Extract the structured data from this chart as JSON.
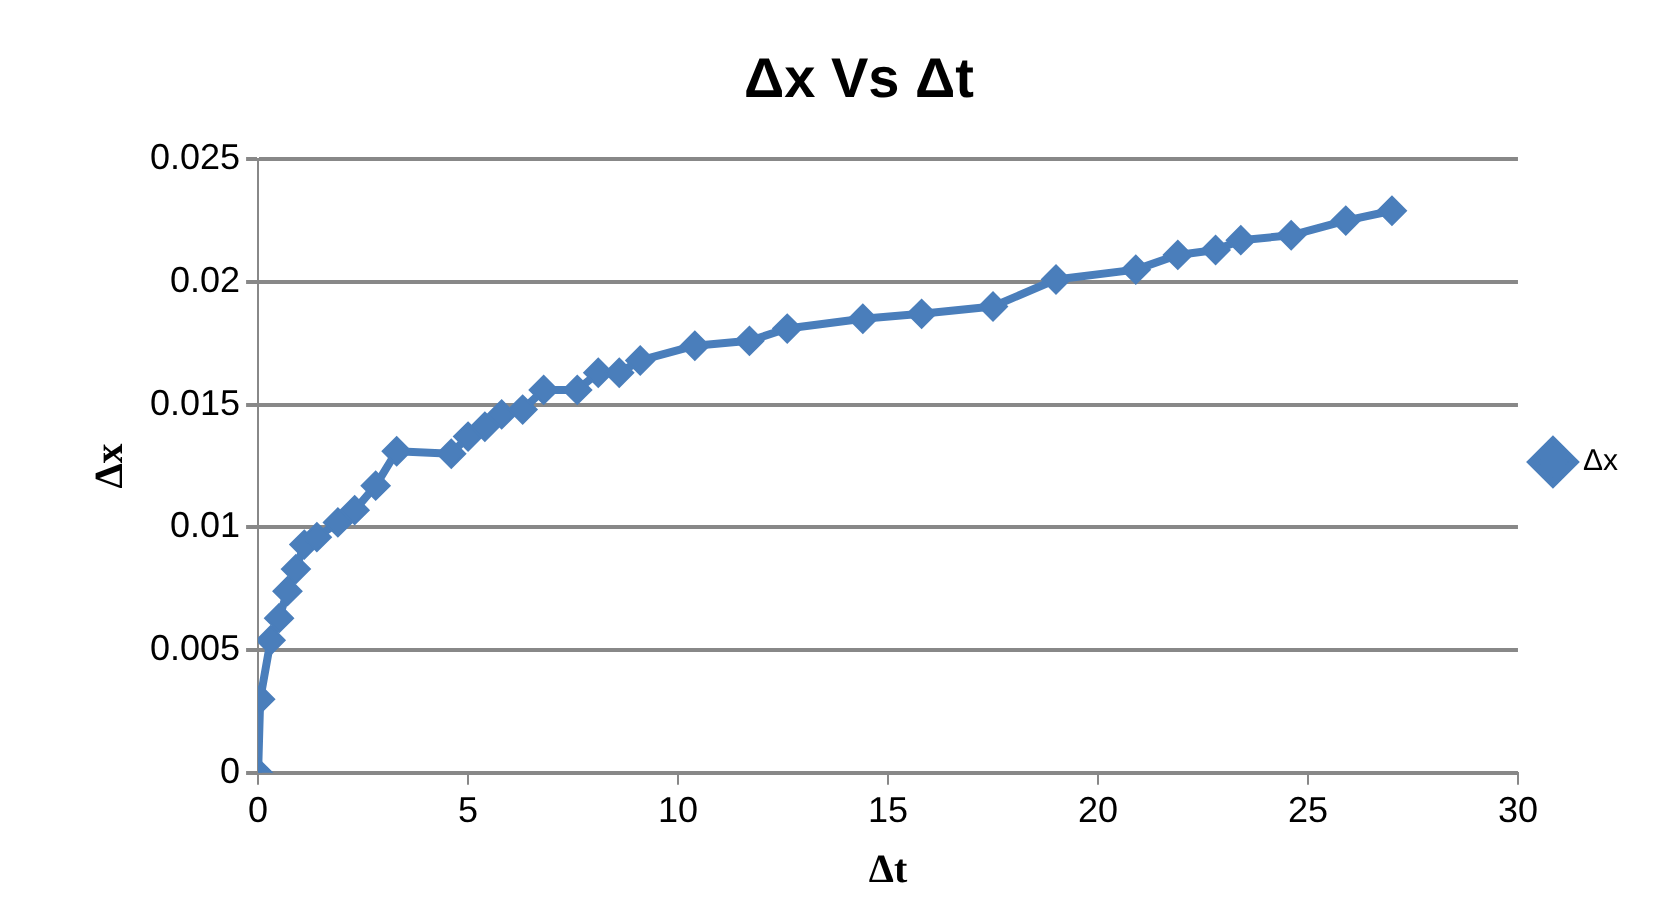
{
  "chart_data": {
    "type": "line",
    "title": "Δx Vs Δt",
    "xlabel": "Δt",
    "ylabel": "Δx",
    "x": [
      0,
      0.05,
      0.3,
      0.5,
      0.7,
      0.9,
      1.1,
      1.4,
      1.9,
      2.3,
      2.8,
      3.3,
      4.6,
      5.0,
      5.4,
      5.8,
      6.3,
      6.8,
      7.6,
      8.1,
      8.6,
      9.1,
      10.4,
      11.7,
      12.6,
      14.4,
      15.8,
      17.5,
      19.0,
      20.9,
      21.9,
      22.8,
      23.4,
      24.6,
      25.9,
      27.0
    ],
    "series": [
      {
        "name": "Δx",
        "color": "#4a7ebb",
        "values": [
          0,
          0.003,
          0.0054,
          0.0063,
          0.0074,
          0.0083,
          0.0093,
          0.0096,
          0.0102,
          0.0107,
          0.0117,
          0.0131,
          0.013,
          0.0137,
          0.0141,
          0.0146,
          0.0148,
          0.0156,
          0.0156,
          0.0163,
          0.0163,
          0.0168,
          0.0174,
          0.0176,
          0.0181,
          0.0185,
          0.0187,
          0.019,
          0.0201,
          0.0205,
          0.0211,
          0.0213,
          0.0217,
          0.0219,
          0.0225,
          0.0229
        ]
      }
    ],
    "xlim": [
      0,
      30
    ],
    "xticks": [
      0,
      5,
      10,
      15,
      20,
      25,
      30
    ],
    "ylim": [
      0,
      0.025
    ],
    "yticks": [
      0,
      0.005,
      0.01,
      0.015,
      0.02,
      0.025
    ],
    "grid": "y",
    "legend": "right",
    "marker": "diamond",
    "line_style": "solid"
  }
}
